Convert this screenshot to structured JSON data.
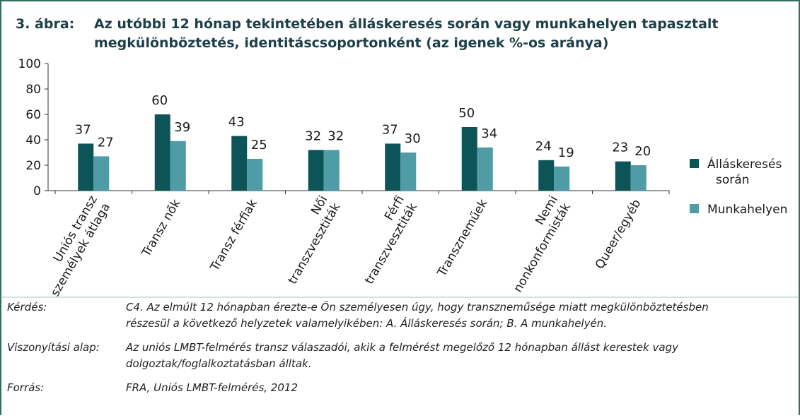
{
  "figure_label": "3. ábra:",
  "chart_data": {
    "type": "bar",
    "title": [
      "Az utóbbi 12 hónap tekintetében álláskeresés során vagy munkahelyen tapasztalt",
      "megkülönböztetés, identitáscsoportonként (az igenek %-os aránya)"
    ],
    "categories": [
      [
        "Uniós transz",
        "személyek átlaga"
      ],
      [
        "Transz nők"
      ],
      [
        "Transz férfiak"
      ],
      [
        "Női",
        "transzvesztiták"
      ],
      [
        "Férfi",
        "transzvesztiták"
      ],
      [
        "Transzneműek"
      ],
      [
        "Nemi",
        "nonkonformisták"
      ],
      [
        "Queer/egyéb"
      ]
    ],
    "series": [
      {
        "name": "Álláskeresés során",
        "color": "#0d5458",
        "values": [
          37,
          60,
          43,
          32,
          37,
          50,
          24,
          23
        ]
      },
      {
        "name": "Munkahelyen",
        "color": "#4f9ba6",
        "values": [
          27,
          39,
          25,
          32,
          30,
          34,
          19,
          20
        ]
      }
    ],
    "ylim": [
      0,
      100
    ],
    "yticks": [
      0,
      20,
      40,
      60,
      80,
      100
    ],
    "grid": false,
    "legend": "right"
  },
  "notes": [
    {
      "label": "Kérdés:",
      "lines": [
        "C4. Az elmúlt 12 hónapban érezte-e Ön személyesen úgy, hogy transzneműsége miatt megkülönböztetésben",
        "részesül a következő helyzetek valamelyikében: A. Álláskeresés során; B. A munkahelyén."
      ]
    },
    {
      "label": "Viszonyítási alap:",
      "lines": [
        "Az uniós LMBT-felmérés transz válaszadói, akik a felmérést megelőző 12 hónapban állást kerestek vagy",
        "dolgoztak/foglalkoztatásban álltak."
      ]
    },
    {
      "label": "Forrás:",
      "lines": [
        "FRA, Uniós LMBT-felmérés, 2012"
      ]
    }
  ]
}
